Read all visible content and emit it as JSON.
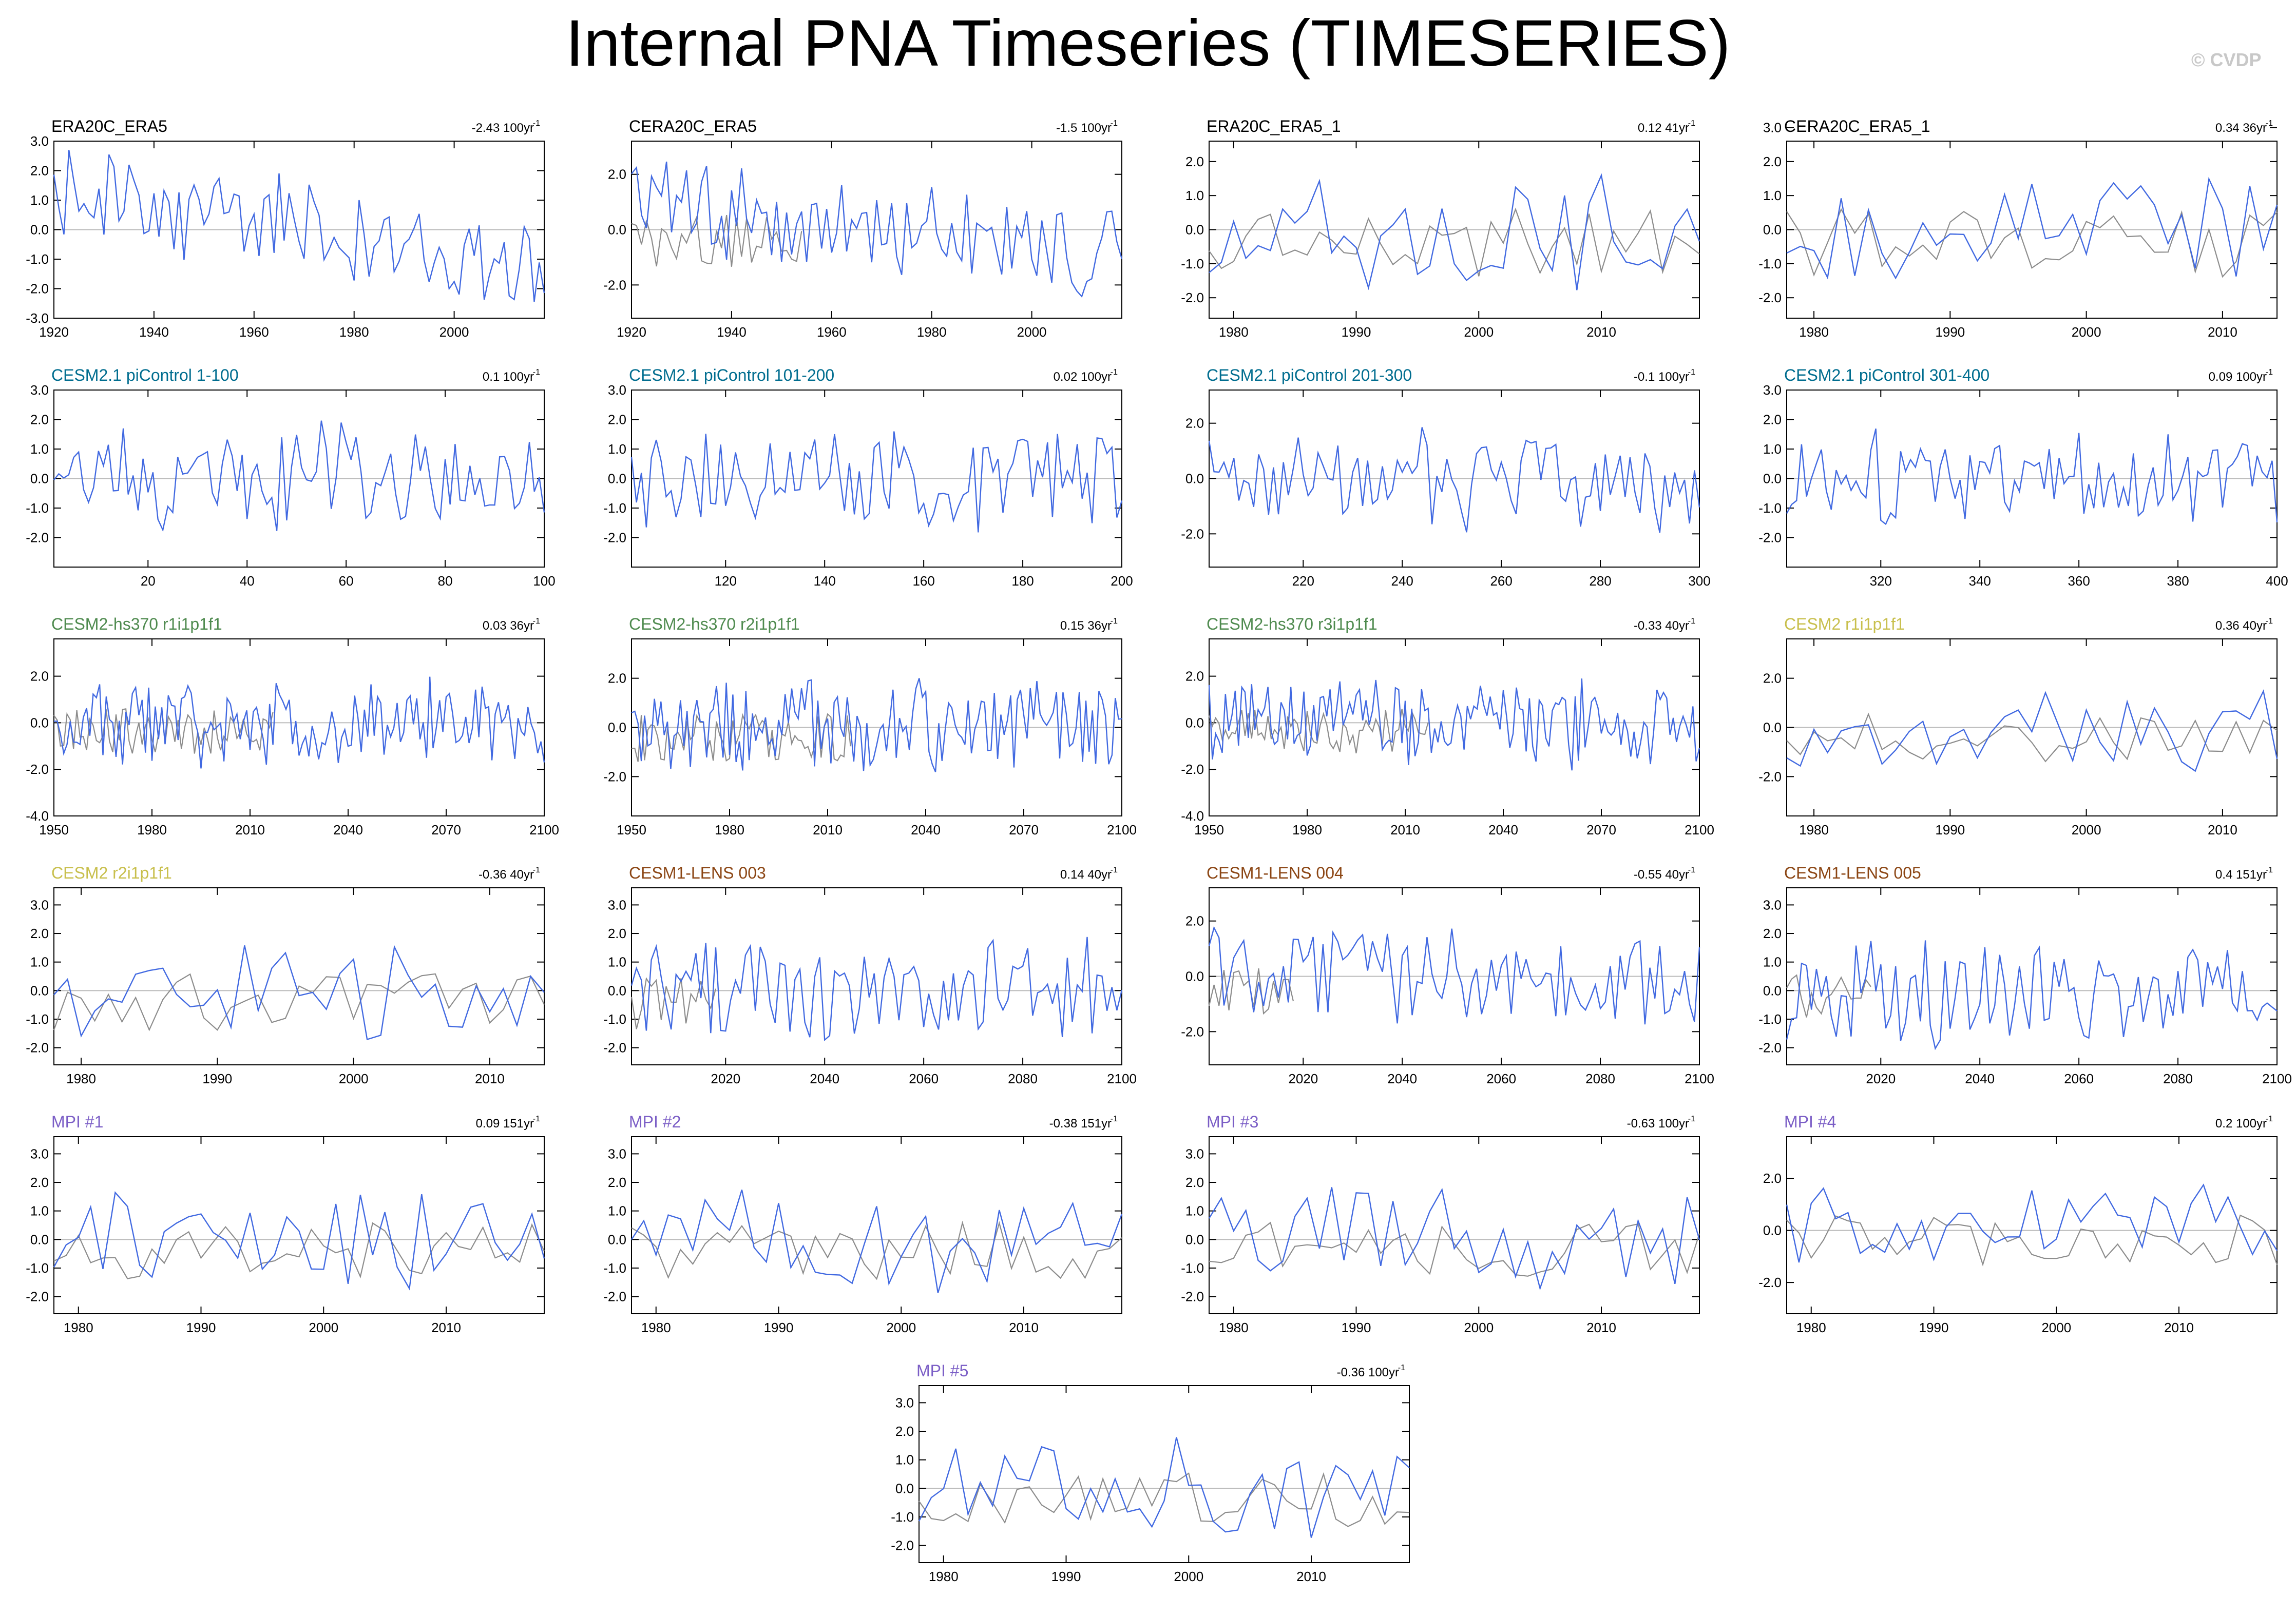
{
  "title": "Internal PNA Timeseries (TIMESERIES)",
  "credit": "© CVDP",
  "colors": {
    "model": "#4169e1",
    "observed": "#8c8c8c",
    "zero_line": "#bbbbbb",
    "obs_label": "#000000",
    "cesm21": "#006d8f",
    "hs370": "#4e8a4e",
    "cesm2": "#c8bf4c",
    "lens": "#8b4513",
    "mpi": "#7b5ec6"
  },
  "chart_data": [
    {
      "type": "line",
      "title": "ERA20C_ERA5",
      "title_color": "#000000",
      "trend": "-2.43 100yr",
      "trend_sup": "-1",
      "xlim": [
        1920,
        2018
      ],
      "xticks": [
        1920,
        1940,
        1960,
        1980,
        2000
      ],
      "ylim": [
        -3,
        3
      ],
      "yticks": [
        "3.0",
        "2.0",
        "1.0",
        "0.0",
        "-1.0",
        "-2.0",
        "-3.0"
      ],
      "seed": 1,
      "amp": 0.95,
      "trend_slope": -2.4,
      "obs": false
    },
    {
      "type": "line",
      "title": "CERA20C_ERA5",
      "title_color": "#000000",
      "trend": "-1.5 100yr",
      "trend_sup": "-1",
      "xlim": [
        1920,
        2018
      ],
      "xticks": [
        1920,
        1940,
        1960,
        1980,
        2000
      ],
      "ylim": [
        -3.2,
        3.2
      ],
      "yticks": [
        "2.0",
        "0.0",
        "-2.0"
      ],
      "seed": 2,
      "amp": 0.95,
      "trend_slope": -1.5,
      "obs": true,
      "obs_span": 0.35
    },
    {
      "type": "line",
      "title": "ERA20C_ERA5_1",
      "title_color": "#000000",
      "trend": "0.12 41yr",
      "trend_sup": "-1",
      "xlim": [
        1978,
        2018
      ],
      "xticks": [
        1980,
        1990,
        2000,
        2010
      ],
      "ylim": [
        -2.6,
        2.6
      ],
      "yticks": [
        "2.0",
        "1.0",
        "0.0",
        "-1.0",
        "-2.0"
      ],
      "seed": 3,
      "amp": 0.95,
      "trend_slope": 0.1,
      "obs": true,
      "obs_span": 1
    },
    {
      "type": "line",
      "title": "CERA20C_ERA5_1",
      "title_color": "#000000",
      "trend": "0.34 36yr",
      "trend_sup": "-1",
      "xlim": [
        1978,
        2014
      ],
      "xticks": [
        1980,
        1990,
        2000,
        2010
      ],
      "ylim": [
        -2.6,
        2.6
      ],
      "yticks": [
        "3.0",
        "2.0",
        "1.0",
        "0.0",
        "-1.0",
        "-2.0"
      ],
      "seed": 4,
      "amp": 0.95,
      "trend_slope": 0.3,
      "obs": true,
      "obs_span": 1
    },
    {
      "type": "line",
      "title": "CESM2.1 piControl 1-100",
      "title_color": "#006d8f",
      "trend": "0.1 100yr",
      "trend_sup": "-1",
      "xlim": [
        1,
        100
      ],
      "xticks": [
        20,
        40,
        60,
        80,
        100
      ],
      "ylim": [
        -3,
        3
      ],
      "yticks": [
        "3.0",
        "2.0",
        "1.0",
        "0.0",
        "-1.0",
        "-2.0"
      ],
      "seed": 5,
      "amp": 1,
      "trend_slope": 0.1,
      "obs": false
    },
    {
      "type": "line",
      "title": "CESM2.1 piControl 101-200",
      "title_color": "#006d8f",
      "trend": "0.02 100yr",
      "trend_sup": "-1",
      "xlim": [
        101,
        200
      ],
      "xticks": [
        120,
        140,
        160,
        180,
        200
      ],
      "ylim": [
        -3,
        3
      ],
      "yticks": [
        "3.0",
        "2.0",
        "1.0",
        "0.0",
        "-1.0",
        "-2.0"
      ],
      "seed": 6,
      "amp": 1,
      "trend_slope": 0.02,
      "obs": false
    },
    {
      "type": "line",
      "title": "CESM2.1 piControl 201-300",
      "title_color": "#006d8f",
      "trend": "-0.1 100yr",
      "trend_sup": "-1",
      "xlim": [
        201,
        300
      ],
      "xticks": [
        220,
        240,
        260,
        280,
        300
      ],
      "ylim": [
        -3.2,
        3.2
      ],
      "yticks": [
        "2.0",
        "0.0",
        "-2.0"
      ],
      "seed": 7,
      "amp": 1,
      "trend_slope": -0.1,
      "obs": false
    },
    {
      "type": "line",
      "title": "CESM2.1 piControl 301-400",
      "title_color": "#006d8f",
      "trend": "0.09 100yr",
      "trend_sup": "-1",
      "xlim": [
        301,
        400
      ],
      "xticks": [
        320,
        340,
        360,
        380,
        400
      ],
      "ylim": [
        -3,
        3
      ],
      "yticks": [
        "3.0",
        "2.0",
        "1.0",
        "0.0",
        "-1.0",
        "-2.0"
      ],
      "seed": 8,
      "amp": 1,
      "trend_slope": 0.09,
      "obs": false
    },
    {
      "type": "line",
      "title": "CESM2-hs370 r1i1p1f1",
      "title_color": "#4e8a4e",
      "trend": "0.03 36yr",
      "trend_sup": "-1",
      "xlim": [
        1950,
        2100
      ],
      "xticks": [
        1950,
        1980,
        2010,
        2040,
        2070,
        2100
      ],
      "ylim": [
        -4,
        3.6
      ],
      "yticks": [
        "2.0",
        "0.0",
        "-2.0",
        "-4.0"
      ],
      "seed": 9,
      "amp": 1.05,
      "trend_slope": 0.03,
      "obs": true,
      "obs_span": 0.45
    },
    {
      "type": "line",
      "title": "CESM2-hs370 r2i1p1f1",
      "title_color": "#4e8a4e",
      "trend": "0.15 36yr",
      "trend_sup": "-1",
      "xlim": [
        1950,
        2100
      ],
      "xticks": [
        1950,
        1980,
        2010,
        2040,
        2070,
        2100
      ],
      "ylim": [
        -3.6,
        3.6
      ],
      "yticks": [
        "2.0",
        "0.0",
        "-2.0"
      ],
      "seed": 10,
      "amp": 1.05,
      "trend_slope": 0.15,
      "obs": true,
      "obs_span": 0.45
    },
    {
      "type": "line",
      "title": "CESM2-hs370 r3i1p1f1",
      "title_color": "#4e8a4e",
      "trend": "-0.33 40yr",
      "trend_sup": "-1",
      "xlim": [
        1950,
        2100
      ],
      "xticks": [
        1950,
        1980,
        2010,
        2040,
        2070,
        2100
      ],
      "ylim": [
        -4,
        3.6
      ],
      "yticks": [
        "2.0",
        "0.0",
        "-2.0",
        "-4.0"
      ],
      "seed": 11,
      "amp": 1.05,
      "trend_slope": -0.3,
      "obs": true,
      "obs_span": 0.45
    },
    {
      "type": "line",
      "title": "CESM2 r1i1p1f1",
      "title_color": "#c8bf4c",
      "trend": "0.36 40yr",
      "trend_sup": "-1",
      "xlim": [
        1978,
        2014
      ],
      "xticks": [
        1980,
        1990,
        2000,
        2010
      ],
      "ylim": [
        -3.6,
        3.6
      ],
      "yticks": [
        "2.0",
        "0.0",
        "-2.0"
      ],
      "seed": 12,
      "amp": 1,
      "trend_slope": 0.3,
      "obs": true,
      "obs_span": 1
    },
    {
      "type": "line",
      "title": "CESM2 r2i1p1f1",
      "title_color": "#c8bf4c",
      "trend": "-0.36 40yr",
      "trend_sup": "-1",
      "xlim": [
        1978,
        2014
      ],
      "xticks": [
        1980,
        1990,
        2000,
        2010
      ],
      "ylim": [
        -2.6,
        3.6
      ],
      "yticks": [
        "3.0",
        "2.0",
        "1.0",
        "0.0",
        "-1.0",
        "-2.0"
      ],
      "seed": 13,
      "amp": 1,
      "trend_slope": -0.3,
      "obs": true,
      "obs_span": 1
    },
    {
      "type": "line",
      "title": "CESM1-LENS 003",
      "title_color": "#8b4513",
      "trend": "0.14 40yr",
      "trend_sup": "-1",
      "xlim": [
        2001,
        2100
      ],
      "xticks": [
        2020,
        2040,
        2060,
        2080,
        2100
      ],
      "ylim": [
        -2.6,
        3.6
      ],
      "yticks": [
        "3.0",
        "2.0",
        "1.0",
        "0.0",
        "-1.0",
        "-2.0"
      ],
      "seed": 14,
      "amp": 1,
      "trend_slope": 0.1,
      "obs": true,
      "obs_span": 0.18
    },
    {
      "type": "line",
      "title": "CESM1-LENS 004",
      "title_color": "#8b4513",
      "trend": "-0.55 40yr",
      "trend_sup": "-1",
      "xlim": [
        2001,
        2100
      ],
      "xticks": [
        2020,
        2040,
        2060,
        2080,
        2100
      ],
      "ylim": [
        -3.2,
        3.2
      ],
      "yticks": [
        "2.0",
        "0.0",
        "-2.0"
      ],
      "seed": 15,
      "amp": 1,
      "trend_slope": -0.5,
      "obs": true,
      "obs_span": 0.18
    },
    {
      "type": "line",
      "title": "CESM1-LENS 005",
      "title_color": "#8b4513",
      "trend": "0.4 151yr",
      "trend_sup": "-1",
      "xlim": [
        2001,
        2100
      ],
      "xticks": [
        2020,
        2040,
        2060,
        2080,
        2100
      ],
      "ylim": [
        -2.6,
        3.6
      ],
      "yticks": [
        "3.0",
        "2.0",
        "1.0",
        "0.0",
        "-1.0",
        "-2.0"
      ],
      "seed": 16,
      "amp": 1,
      "trend_slope": 0.4,
      "obs": true,
      "obs_span": 0.18
    },
    {
      "type": "line",
      "title": "MPI #1",
      "title_color": "#7b5ec6",
      "trend": "0.09 151yr",
      "trend_sup": "-1",
      "xlim": [
        1978,
        2018
      ],
      "xticks": [
        1980,
        1990,
        2000,
        2010
      ],
      "ylim": [
        -2.6,
        3.6
      ],
      "yticks": [
        "3.0",
        "2.0",
        "1.0",
        "0.0",
        "-1.0",
        "-2.0"
      ],
      "seed": 17,
      "amp": 1,
      "trend_slope": 0.09,
      "obs": true,
      "obs_span": 1
    },
    {
      "type": "line",
      "title": "MPI #2",
      "title_color": "#7b5ec6",
      "trend": "-0.38 151yr",
      "trend_sup": "-1",
      "xlim": [
        1978,
        2018
      ],
      "xticks": [
        1980,
        1990,
        2000,
        2010
      ],
      "ylim": [
        -2.6,
        3.6
      ],
      "yticks": [
        "3.0",
        "2.0",
        "1.0",
        "0.0",
        "-1.0",
        "-2.0"
      ],
      "seed": 18,
      "amp": 1,
      "trend_slope": -0.3,
      "obs": true,
      "obs_span": 1
    },
    {
      "type": "line",
      "title": "MPI #3",
      "title_color": "#7b5ec6",
      "trend": "-0.63 100yr",
      "trend_sup": "-1",
      "xlim": [
        1978,
        2018
      ],
      "xticks": [
        1980,
        1990,
        2000,
        2010
      ],
      "ylim": [
        -2.6,
        3.6
      ],
      "yticks": [
        "3.0",
        "2.0",
        "1.0",
        "0.0",
        "-1.0",
        "-2.0"
      ],
      "seed": 19,
      "amp": 1,
      "trend_slope": -0.6,
      "obs": true,
      "obs_span": 1
    },
    {
      "type": "line",
      "title": "MPI #4",
      "title_color": "#7b5ec6",
      "trend": "0.2 100yr",
      "trend_sup": "-1",
      "xlim": [
        1978,
        2018
      ],
      "xticks": [
        1980,
        1990,
        2000,
        2010
      ],
      "ylim": [
        -3.2,
        3.6
      ],
      "yticks": [
        "2.0",
        "0.0",
        "-2.0"
      ],
      "seed": 20,
      "amp": 1,
      "trend_slope": 0.2,
      "obs": true,
      "obs_span": 1
    },
    {
      "type": "line",
      "title": "MPI #5",
      "title_color": "#7b5ec6",
      "trend": "-0.36 100yr",
      "trend_sup": "-1",
      "xlim": [
        1978,
        2018
      ],
      "xticks": [
        1980,
        1990,
        2000,
        2010
      ],
      "ylim": [
        -2.6,
        3.6
      ],
      "yticks": [
        "3.0",
        "2.0",
        "1.0",
        "0.0",
        "-1.0",
        "-2.0"
      ],
      "seed": 21,
      "amp": 1,
      "trend_slope": -0.3,
      "obs": true,
      "obs_span": 1
    }
  ]
}
